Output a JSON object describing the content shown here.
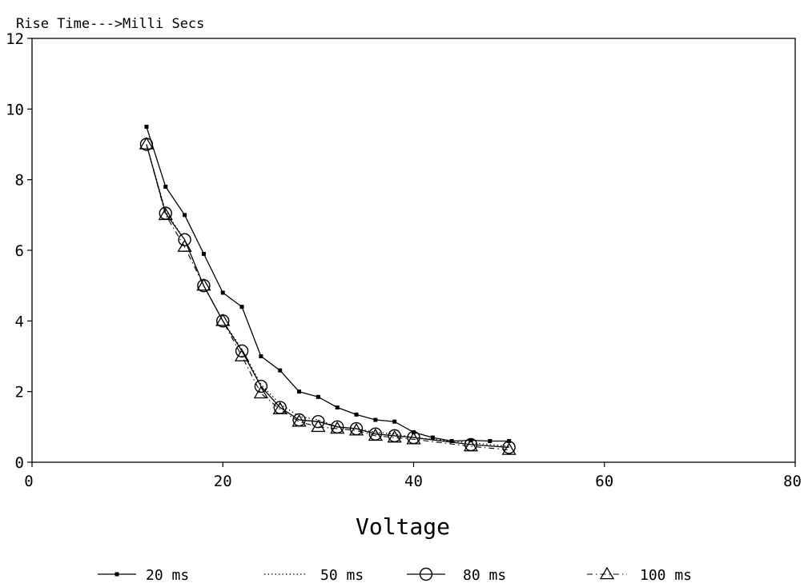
{
  "chart_data": {
    "type": "line",
    "title": "Rise Time--->Milli Secs",
    "xlabel": "Voltage",
    "ylabel": "",
    "xlim": [
      0,
      80
    ],
    "ylim": [
      0,
      12
    ],
    "xticks": [
      "0",
      "20",
      "40",
      "60",
      "80"
    ],
    "yticks": [
      "0",
      "2",
      "4",
      "6",
      "8",
      "10",
      "12"
    ],
    "grid": false,
    "legend_position": "bottom",
    "series": [
      {
        "name": "20 ms",
        "marker": "square",
        "line": "solid",
        "x": [
          12,
          14,
          16,
          18,
          20,
          22,
          24,
          26,
          28,
          30,
          32,
          34,
          36,
          38,
          40,
          42,
          44,
          46,
          48,
          50
        ],
        "y": [
          9.5,
          7.8,
          7.0,
          5.9,
          4.8,
          4.4,
          3.0,
          2.6,
          2.0,
          1.85,
          1.55,
          1.35,
          1.2,
          1.15,
          0.85,
          0.7,
          0.6,
          0.62,
          0.6,
          0.6
        ]
      },
      {
        "name": "50 ms",
        "marker": "none",
        "line": "dotted",
        "x": [
          12,
          14,
          16,
          18,
          20,
          22,
          24,
          26,
          28,
          30,
          32,
          34,
          36,
          38,
          40,
          42,
          44,
          46,
          48,
          50
        ],
        "y": [
          9.0,
          7.1,
          6.3,
          5.0,
          4.0,
          3.2,
          2.2,
          1.65,
          1.3,
          1.2,
          1.0,
          0.95,
          0.85,
          0.8,
          0.7,
          0.65,
          0.6,
          0.55,
          0.5,
          0.45
        ]
      },
      {
        "name": "80 ms",
        "marker": "circle",
        "line": "solid",
        "x": [
          12,
          14,
          16,
          18,
          20,
          22,
          24,
          26,
          28,
          30,
          32,
          34,
          36,
          38,
          40,
          46,
          50
        ],
        "y": [
          9.0,
          7.05,
          6.3,
          5.0,
          4.0,
          3.15,
          2.15,
          1.55,
          1.2,
          1.15,
          1.0,
          0.95,
          0.8,
          0.75,
          0.7,
          0.5,
          0.42
        ]
      },
      {
        "name": "100 ms",
        "marker": "triangle",
        "line": "dash-dot",
        "x": [
          12,
          14,
          16,
          18,
          20,
          22,
          24,
          26,
          28,
          30,
          32,
          34,
          36,
          38,
          40,
          46,
          50
        ],
        "y": [
          9.0,
          7.0,
          6.1,
          5.0,
          4.0,
          3.0,
          1.95,
          1.5,
          1.15,
          1.0,
          0.95,
          0.9,
          0.75,
          0.7,
          0.65,
          0.45,
          0.35
        ]
      }
    ]
  }
}
